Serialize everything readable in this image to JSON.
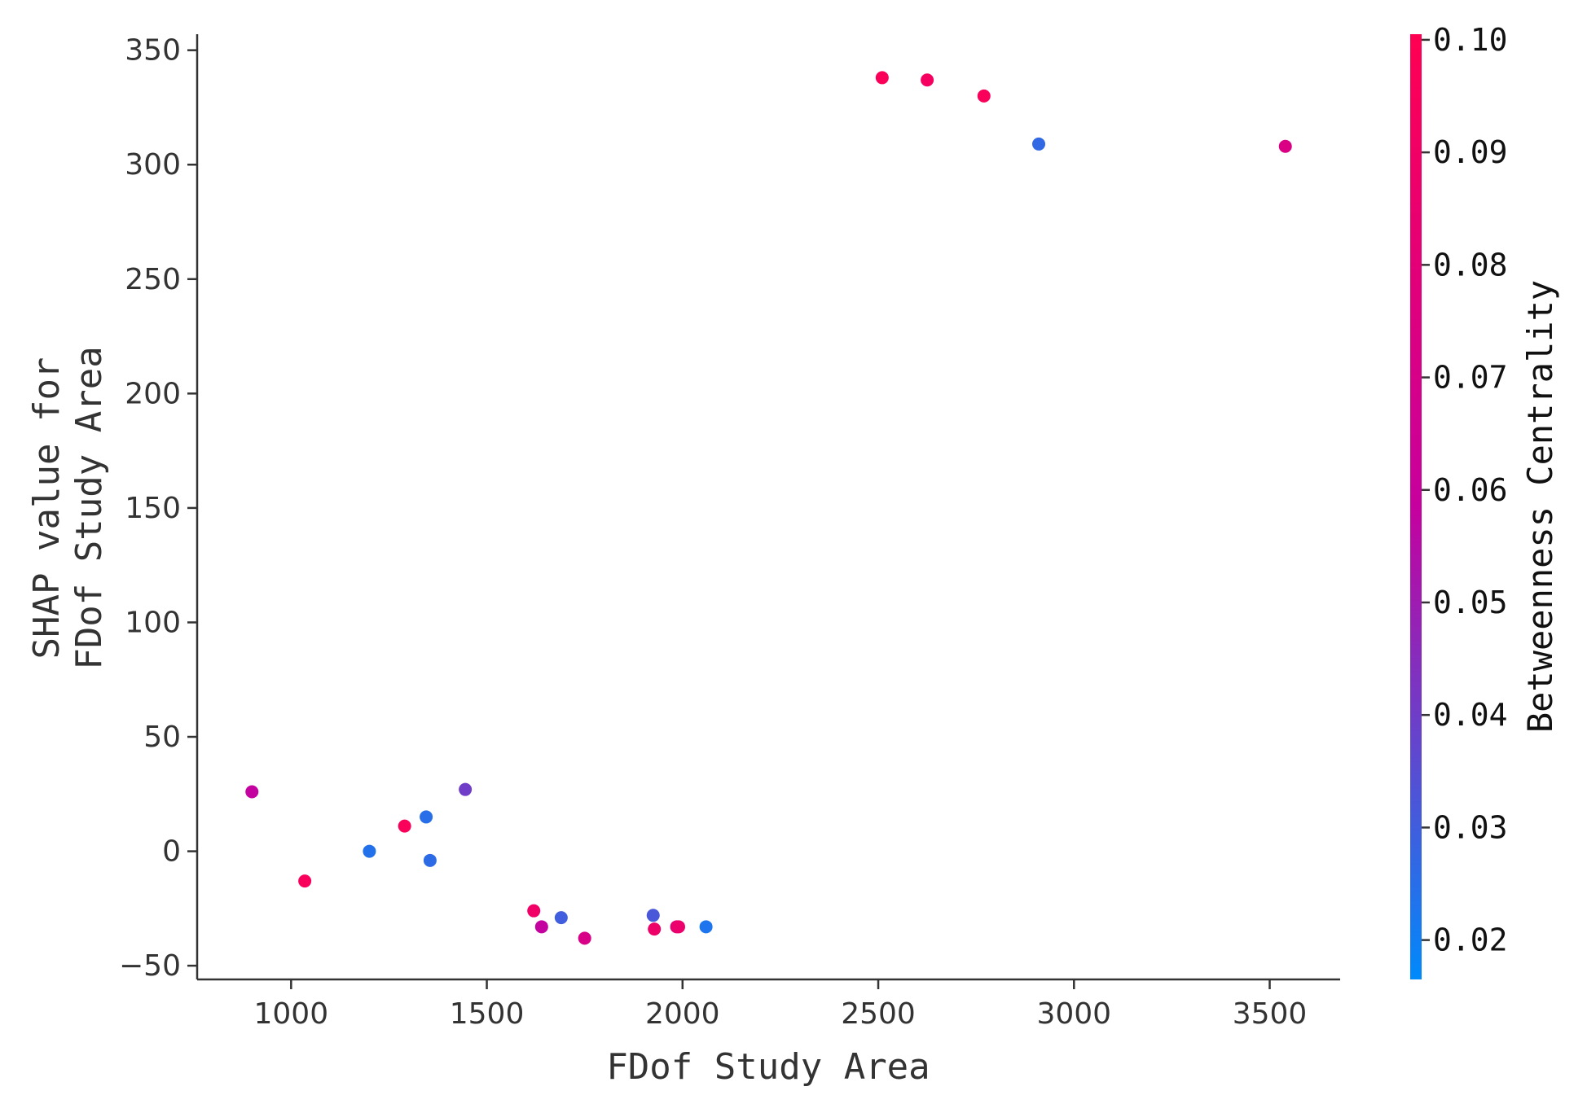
{
  "chart_data": {
    "type": "scatter",
    "xlabel": "FDof Study Area",
    "ylabel_lines": [
      "SHAP value for",
      "FDof Study Area"
    ],
    "xlim": [
      760,
      3680
    ],
    "ylim": [
      -56,
      357
    ],
    "xticks": [
      1000,
      1500,
      2000,
      2500,
      3000,
      3500
    ],
    "yticks": [
      -50,
      0,
      50,
      100,
      150,
      200,
      250,
      300,
      350
    ],
    "grid": false,
    "colorbar": {
      "label": "Betweenness Centrality",
      "range": [
        0.0165,
        0.1005
      ],
      "ticks": [
        "0.02",
        "0.03",
        "0.04",
        "0.05",
        "0.06",
        "0.07",
        "0.08",
        "0.09",
        "0.10"
      ],
      "colors": [
        "#008afb",
        "#c6009e",
        "#ff0052"
      ]
    },
    "points": [
      {
        "x": 900,
        "y": 26,
        "c": 0.058
      },
      {
        "x": 1035,
        "y": -13,
        "c": 0.095
      },
      {
        "x": 1200,
        "y": 0,
        "c": 0.024
      },
      {
        "x": 1290,
        "y": 11,
        "c": 0.096
      },
      {
        "x": 1345,
        "y": 15,
        "c": 0.025
      },
      {
        "x": 1355,
        "y": -4,
        "c": 0.026
      },
      {
        "x": 1445,
        "y": 27,
        "c": 0.04
      },
      {
        "x": 1620,
        "y": -26,
        "c": 0.09
      },
      {
        "x": 1640,
        "y": -33,
        "c": 0.058
      },
      {
        "x": 1690,
        "y": -29,
        "c": 0.03
      },
      {
        "x": 1750,
        "y": -38,
        "c": 0.072
      },
      {
        "x": 1925,
        "y": -28,
        "c": 0.032
      },
      {
        "x": 1928,
        "y": -34,
        "c": 0.088
      },
      {
        "x": 1985,
        "y": -33,
        "c": 0.08
      },
      {
        "x": 1990,
        "y": -33,
        "c": 0.086
      },
      {
        "x": 2060,
        "y": -33,
        "c": 0.023
      },
      {
        "x": 2510,
        "y": 338,
        "c": 0.097
      },
      {
        "x": 2625,
        "y": 337,
        "c": 0.093
      },
      {
        "x": 2770,
        "y": 330,
        "c": 0.096
      },
      {
        "x": 2910,
        "y": 309,
        "c": 0.027
      },
      {
        "x": 3540,
        "y": 308,
        "c": 0.073
      }
    ]
  }
}
